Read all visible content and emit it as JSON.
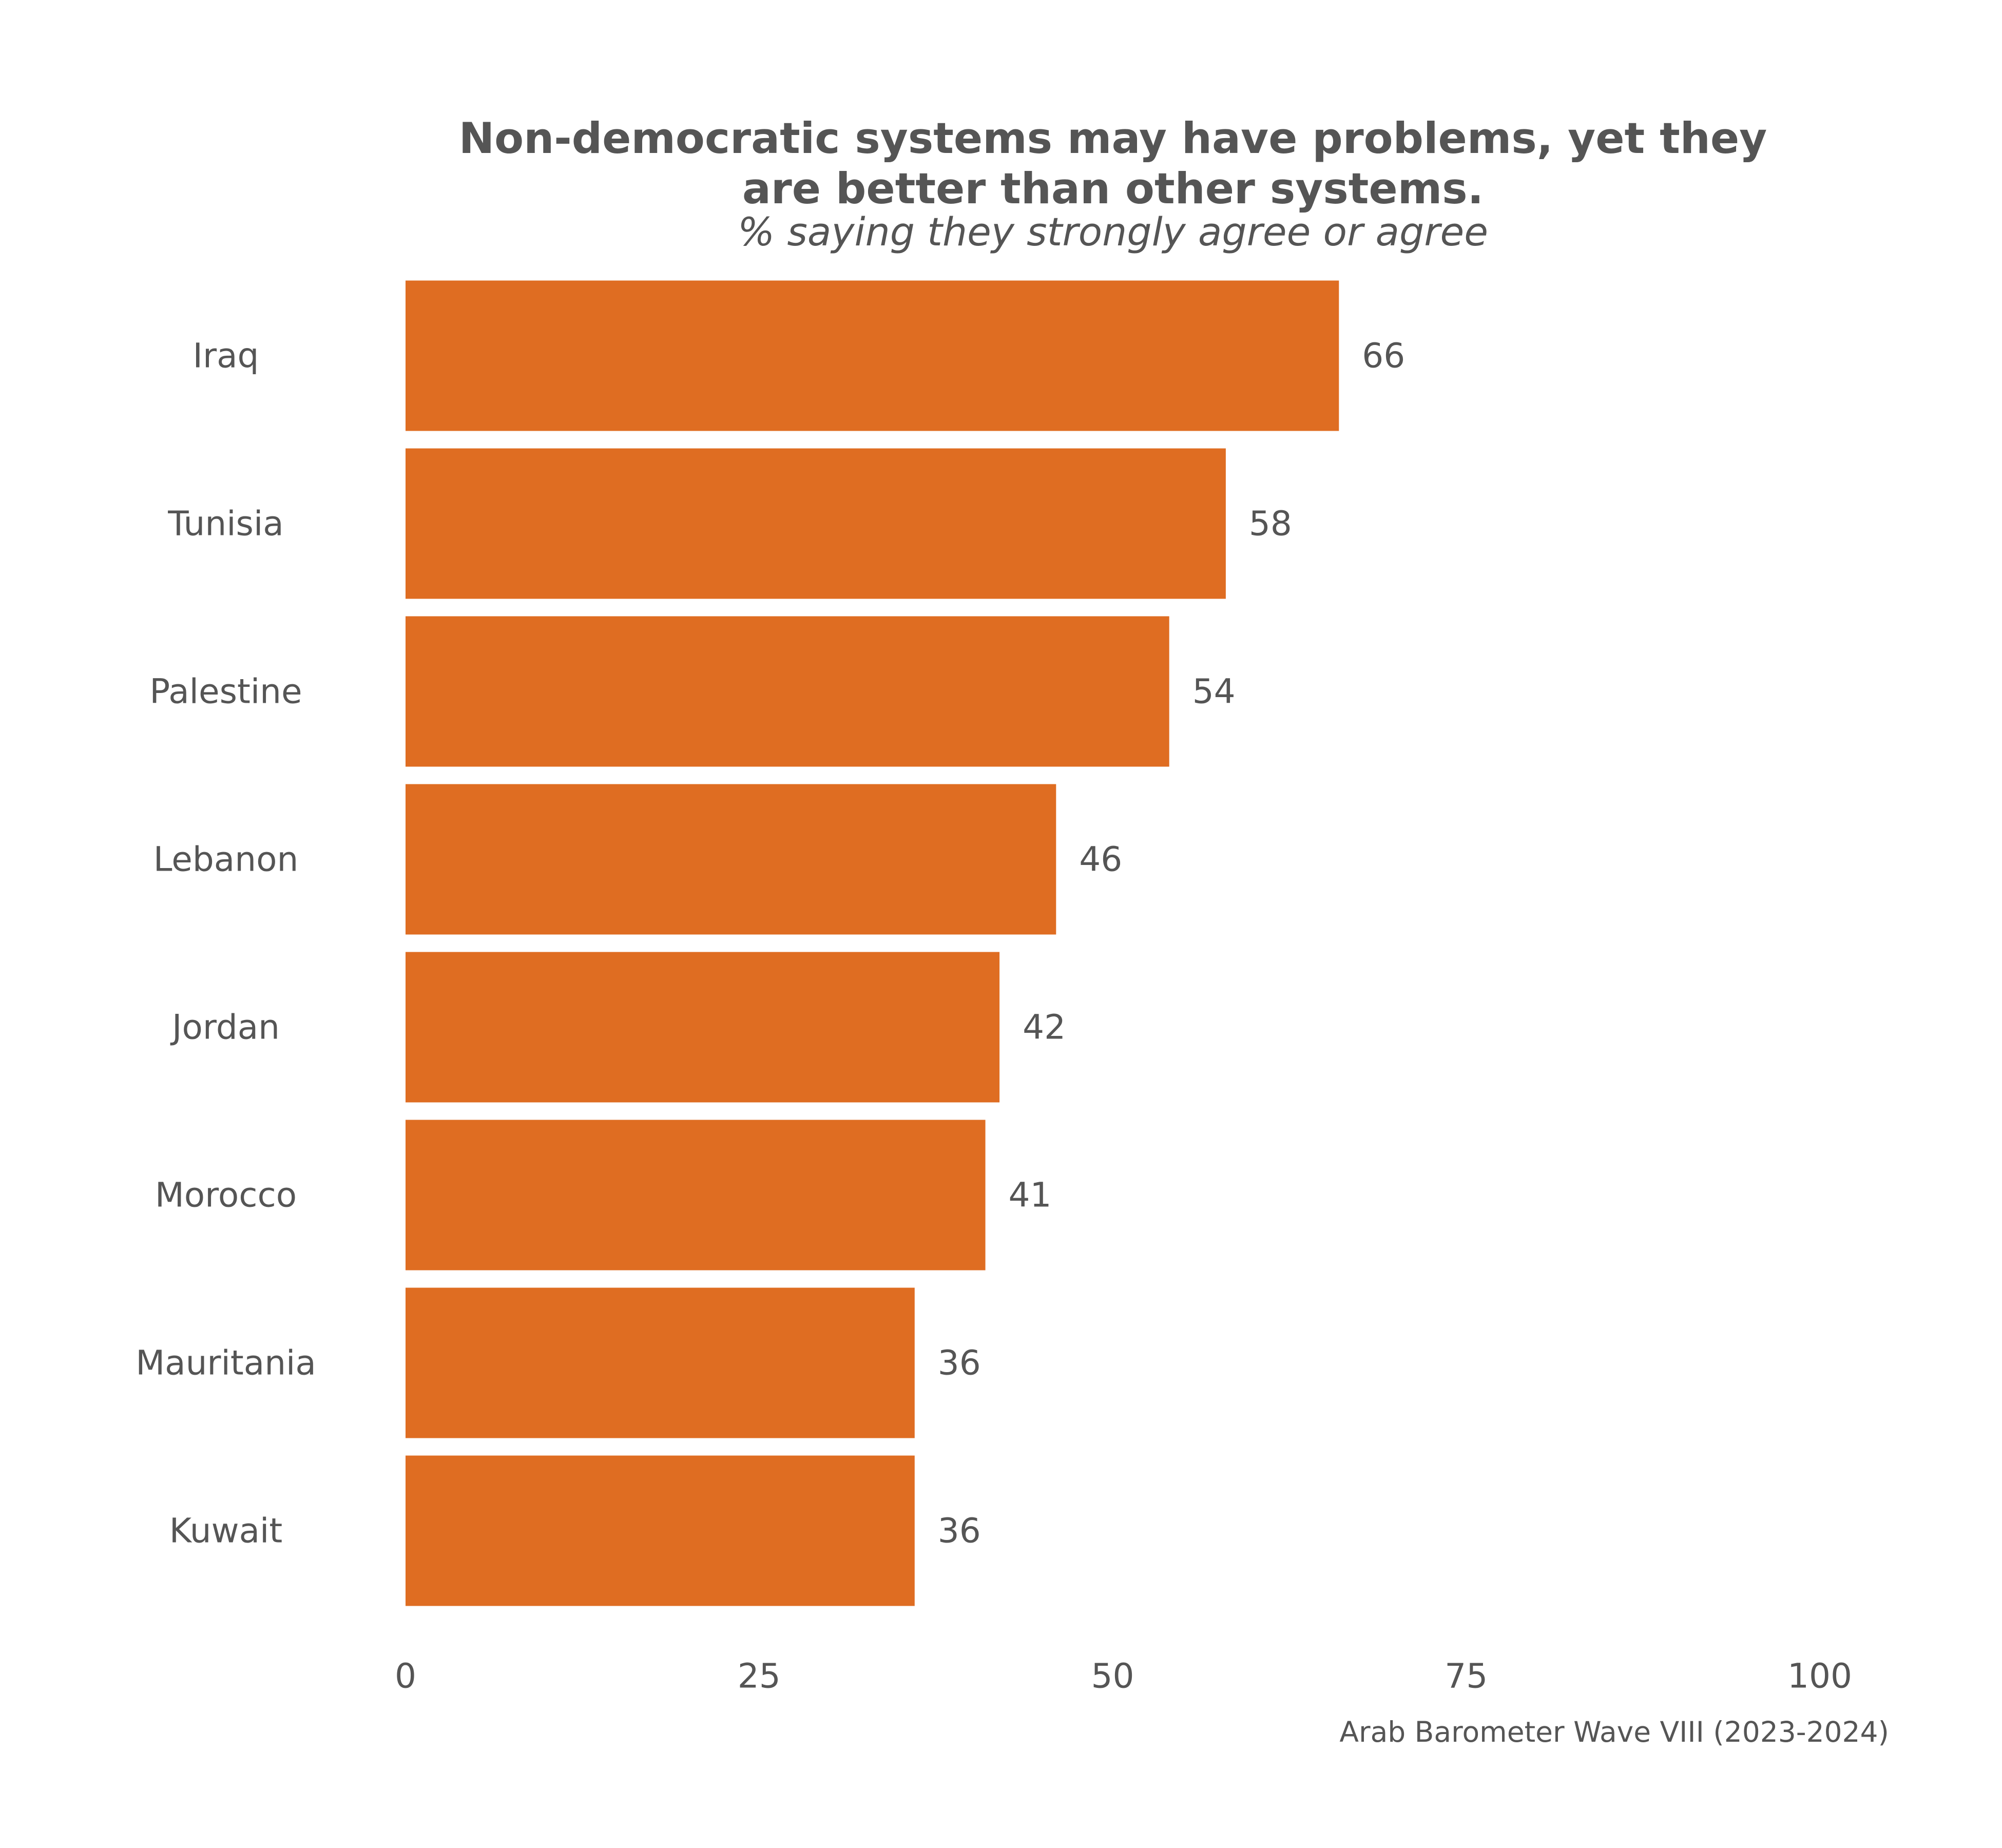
{
  "chart_data": {
    "type": "bar",
    "orientation": "horizontal",
    "title": "Non-democratic systems may have problems, yet they are better than other systems.",
    "title_lines": [
      "Non-democratic systems may have problems, yet they",
      "are better than other systems."
    ],
    "subtitle": "% saying they strongly agree or agree",
    "caption": "Arab Barometer Wave VIII (2023-2024)",
    "categories": [
      "Iraq",
      "Tunisia",
      "Palestine",
      "Lebanon",
      "Jordan",
      "Morocco",
      "Mauritania",
      "Kuwait"
    ],
    "values": [
      66,
      58,
      54,
      46,
      42,
      41,
      36,
      36
    ],
    "data_labels": [
      "66",
      "58",
      "54",
      "46",
      "42",
      "41",
      "36",
      "36"
    ],
    "xlim": [
      0,
      100
    ],
    "x_ticks": [
      0,
      25,
      50,
      75,
      100
    ],
    "x_tick_labels": [
      "0",
      "25",
      "50",
      "75",
      "100"
    ],
    "xlabel": "",
    "ylabel": "",
    "grid": false,
    "legend": "none",
    "bar_color": "#DF6D22",
    "text_color": "#555555"
  }
}
